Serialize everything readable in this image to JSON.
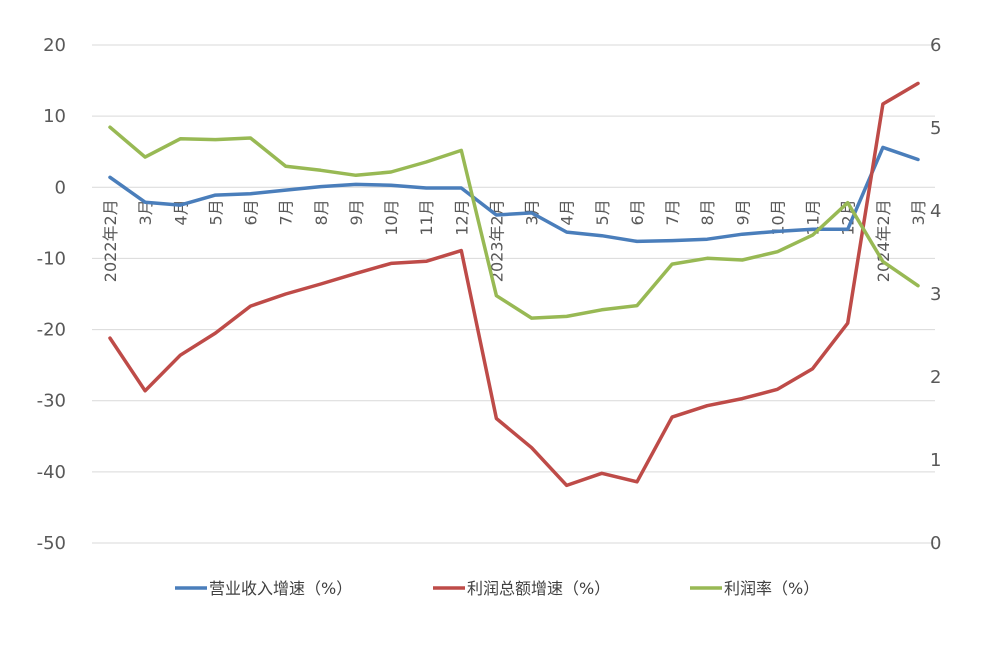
{
  "chart_data": {
    "type": "line",
    "title": "",
    "categories": [
      "2022年2月",
      "3月",
      "4月",
      "5月",
      "6月",
      "7月",
      "8月",
      "9月",
      "10月",
      "11月",
      "12月",
      "2023年2月",
      "3月",
      "4月",
      "5月",
      "6月",
      "7月",
      "8月",
      "9月",
      "10月",
      "11月",
      "12月",
      "2024年2月",
      "3月"
    ],
    "y_left": {
      "ylim": [
        -50,
        20
      ],
      "ticks": [
        20,
        10,
        0,
        -10,
        -20,
        -30,
        -40,
        -50
      ]
    },
    "y_right": {
      "ylim": [
        0,
        6
      ],
      "ticks": [
        6,
        5,
        4,
        3,
        2,
        1,
        0
      ]
    },
    "grid": true,
    "legend_position": "bottom",
    "series": [
      {
        "name": "营业收入增速（%）",
        "axis": "left",
        "color": "#4a7ebb",
        "values": [
          1.4,
          -2.1,
          -2.5,
          -1.1,
          -0.9,
          -0.4,
          0.1,
          0.4,
          0.3,
          -0.1,
          -0.1,
          -3.9,
          -3.6,
          -6.3,
          -6.8,
          -7.6,
          -7.5,
          -7.3,
          -6.6,
          -6.2,
          -5.9,
          -5.9,
          5.6,
          3.9
        ]
      },
      {
        "name": "利润总额增速（%）",
        "axis": "left",
        "color": "#be4b48",
        "values": [
          -21.2,
          -28.6,
          -23.6,
          -20.5,
          -16.7,
          -15.0,
          -13.6,
          -12.1,
          -10.7,
          -10.4,
          -8.9,
          -32.5,
          -36.6,
          -41.9,
          -40.2,
          -41.4,
          -32.3,
          -30.7,
          -29.7,
          -28.4,
          -25.5,
          -19.1,
          11.7,
          14.6
        ]
      },
      {
        "name": "利润率（%）",
        "axis": "right",
        "color": "#98b954",
        "values": [
          5.01,
          4.65,
          4.87,
          4.86,
          4.88,
          4.54,
          4.49,
          4.43,
          4.47,
          4.59,
          4.73,
          2.98,
          2.71,
          2.73,
          2.81,
          2.86,
          3.36,
          3.43,
          3.41,
          3.51,
          3.71,
          4.1,
          3.39,
          3.1
        ]
      }
    ]
  }
}
